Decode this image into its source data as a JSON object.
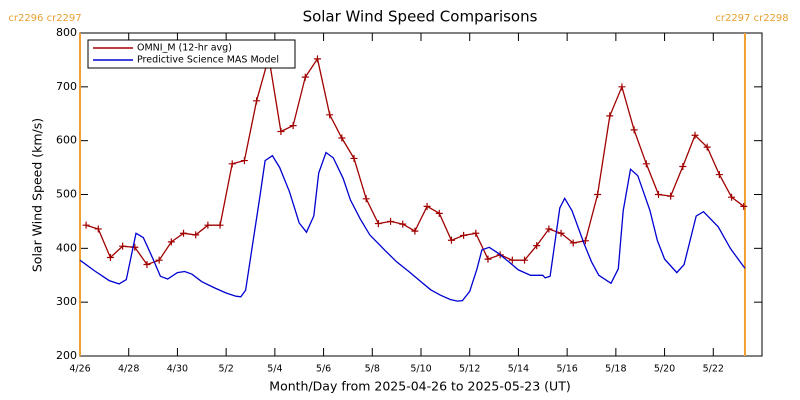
{
  "chart_data": {
    "type": "line",
    "title": "Solar Wind Speed Comparisons",
    "xlabel": "Month/Day from 2025-04-26 to 2025-05-23 (UT)",
    "ylabel": "Solar Wind Speed (km/s)",
    "xlim": [
      0,
      28
    ],
    "ylim": [
      200,
      800
    ],
    "yticks": [
      200,
      300,
      400,
      500,
      600,
      700,
      800
    ],
    "xticks": [
      {
        "value": 0,
        "label": "4/26"
      },
      {
        "value": 2,
        "label": "4/28"
      },
      {
        "value": 4,
        "label": "4/30"
      },
      {
        "value": 6,
        "label": "5/2"
      },
      {
        "value": 8,
        "label": "5/4"
      },
      {
        "value": 10,
        "label": "5/6"
      },
      {
        "value": 12,
        "label": "5/8"
      },
      {
        "value": 14,
        "label": "5/10"
      },
      {
        "value": 16,
        "label": "5/12"
      },
      {
        "value": 18,
        "label": "5/14"
      },
      {
        "value": 20,
        "label": "5/16"
      },
      {
        "value": 22,
        "label": "5/18"
      },
      {
        "value": 24,
        "label": "5/20"
      },
      {
        "value": 26,
        "label": "5/22"
      }
    ],
    "markers": [
      {
        "x": 0,
        "label": "cr2296 cr2297",
        "color": "#f0a030"
      },
      {
        "x": 27.3,
        "label": "cr2297 cr2298",
        "color": "#f0a030"
      }
    ],
    "legend": "upper left",
    "series": [
      {
        "name": "OMNI_M (12-hr avg)",
        "color": "#a00000",
        "marker": "+",
        "x": [
          0.25,
          0.75,
          1.25,
          1.75,
          2.25,
          2.75,
          3.25,
          3.75,
          4.25,
          4.75,
          5.25,
          5.75,
          6.25,
          6.75,
          7.25,
          7.75,
          8.25,
          8.75,
          9.25,
          9.75,
          10.25,
          10.75,
          11.25,
          11.75,
          12.25,
          12.75,
          13.25,
          13.75,
          14.25,
          14.75,
          15.25,
          15.75,
          16.25,
          16.75,
          17.25,
          17.75,
          18.25,
          18.75,
          19.25,
          19.75,
          20.25,
          20.75,
          21.25,
          21.75,
          22.25,
          22.75,
          23.25,
          23.75,
          24.25,
          24.75,
          25.25,
          25.75,
          26.25,
          26.75,
          27.25
        ],
        "values": [
          443,
          436,
          383,
          404,
          402,
          370,
          378,
          412,
          428,
          425,
          443,
          443,
          557,
          563,
          674,
          755,
          617,
          628,
          718,
          752,
          648,
          605,
          567,
          492,
          446,
          450,
          445,
          432,
          478,
          465,
          415,
          424,
          428,
          380,
          388,
          378,
          378,
          405,
          436,
          428,
          410,
          414,
          500,
          646,
          700,
          620,
          557,
          500,
          497,
          552,
          610,
          588,
          537,
          495,
          478
        ]
      },
      {
        "name": "Predictive Science MAS Model",
        "color": "#0000d0",
        "x": [
          0,
          0.6,
          1.2,
          1.6,
          1.9,
          2.3,
          2.6,
          3.0,
          3.3,
          3.6,
          4.0,
          4.3,
          4.6,
          5.0,
          5.5,
          6.0,
          6.4,
          6.6,
          6.8,
          7.4,
          7.6,
          7.9,
          8.2,
          8.6,
          9.0,
          9.3,
          9.6,
          9.8,
          10.1,
          10.4,
          10.8,
          11.1,
          11.5,
          11.9,
          12.5,
          13.0,
          13.5,
          14.0,
          14.4,
          14.8,
          15.2,
          15.5,
          15.7,
          16.0,
          16.3,
          16.5,
          16.8,
          17.2,
          17.6,
          18.0,
          18.5,
          19.0,
          19.1,
          19.3,
          19.7,
          19.9,
          20.2,
          20.7,
          21.0,
          21.3,
          21.8,
          22.1,
          22.3,
          22.6,
          22.9,
          23.4,
          23.7,
          24.0,
          24.5,
          24.8,
          25.3,
          25.6,
          26.2,
          26.7,
          27.1,
          27.3
        ],
        "values": [
          378,
          358,
          340,
          334,
          342,
          428,
          420,
          380,
          348,
          343,
          355,
          357,
          352,
          338,
          327,
          317,
          311,
          310,
          322,
          500,
          563,
          572,
          550,
          505,
          447,
          430,
          460,
          540,
          578,
          568,
          530,
          490,
          455,
          425,
          397,
          375,
          357,
          338,
          323,
          313,
          305,
          302,
          303,
          320,
          362,
          397,
          402,
          390,
          375,
          360,
          350,
          350,
          345,
          348,
          475,
          493,
          470,
          408,
          375,
          350,
          335,
          362,
          470,
          547,
          535,
          470,
          415,
          380,
          355,
          370,
          460,
          468,
          440,
          400,
          375,
          363
        ]
      }
    ]
  }
}
